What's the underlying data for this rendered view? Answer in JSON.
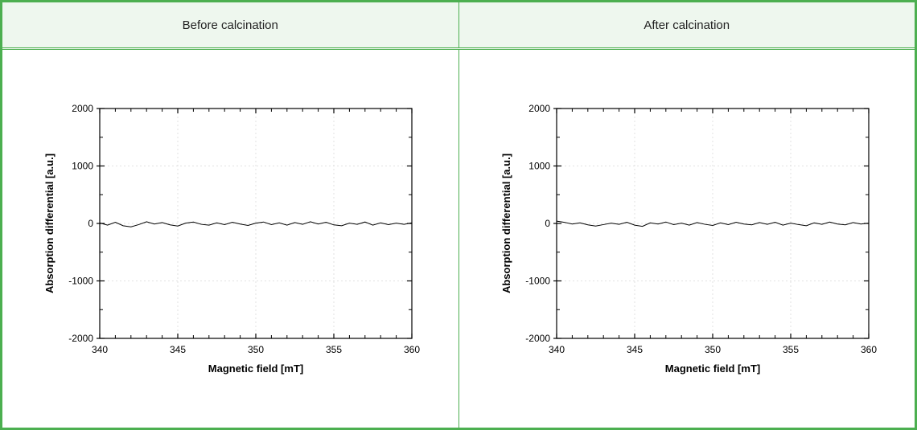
{
  "panels": [
    {
      "header": "Before  calcination",
      "chart": {
        "type": "line",
        "xlabel": "Magnetic field [mT]",
        "ylabel": "Absorption differential [a.u.]",
        "label_fontsize": 13,
        "label_fontweight": "bold",
        "tick_fontsize": 12,
        "xlim": [
          340,
          360
        ],
        "ylim": [
          -2000,
          2000
        ],
        "xticks": [
          340,
          345,
          350,
          355,
          360
        ],
        "yticks": [
          -2000,
          -1000,
          0,
          1000,
          2000
        ],
        "background_color": "#ffffff",
        "axis_color": "#000000",
        "grid_color": "#d9d9d9",
        "grid": true,
        "line_color": "#000000",
        "line_width": 1.0,
        "series_x": [
          340.0,
          340.5,
          341.0,
          341.5,
          342.0,
          342.5,
          343.0,
          343.5,
          344.0,
          344.5,
          345.0,
          345.5,
          346.0,
          346.5,
          347.0,
          347.5,
          348.0,
          348.5,
          349.0,
          349.5,
          350.0,
          350.5,
          351.0,
          351.5,
          352.0,
          352.5,
          353.0,
          353.5,
          354.0,
          354.5,
          355.0,
          355.5,
          356.0,
          356.5,
          357.0,
          357.5,
          358.0,
          358.5,
          359.0,
          359.5,
          360.0
        ],
        "series_y": [
          10,
          -30,
          20,
          -40,
          -60,
          -20,
          30,
          -10,
          15,
          -25,
          -45,
          5,
          25,
          -15,
          -30,
          10,
          -20,
          20,
          -10,
          -35,
          5,
          25,
          -20,
          10,
          -30,
          15,
          -15,
          30,
          -10,
          20,
          -25,
          -40,
          5,
          -15,
          25,
          -30,
          10,
          -20,
          5,
          -15,
          10
        ]
      }
    },
    {
      "header": "After  calcination",
      "chart": {
        "type": "line",
        "xlabel": "Magnetic field [mT]",
        "ylabel": "Absorption differential [a.u.]",
        "label_fontsize": 13,
        "label_fontweight": "bold",
        "tick_fontsize": 12,
        "xlim": [
          340,
          360
        ],
        "ylim": [
          -2000,
          2000
        ],
        "xticks": [
          340,
          345,
          350,
          355,
          360
        ],
        "yticks": [
          -2000,
          -1000,
          0,
          1000,
          2000
        ],
        "background_color": "#ffffff",
        "axis_color": "#000000",
        "grid_color": "#d9d9d9",
        "grid": true,
        "line_color": "#000000",
        "line_width": 1.0,
        "series_x": [
          340.0,
          340.5,
          341.0,
          341.5,
          342.0,
          342.5,
          343.0,
          343.5,
          344.0,
          344.5,
          345.0,
          345.5,
          346.0,
          346.5,
          347.0,
          347.5,
          348.0,
          348.5,
          349.0,
          349.5,
          350.0,
          350.5,
          351.0,
          351.5,
          352.0,
          352.5,
          353.0,
          353.5,
          354.0,
          354.5,
          355.0,
          355.5,
          356.0,
          356.5,
          357.0,
          357.5,
          358.0,
          358.5,
          359.0,
          359.5,
          360.0
        ],
        "series_y": [
          40,
          20,
          -10,
          10,
          -25,
          -45,
          -20,
          5,
          -15,
          20,
          -30,
          -50,
          10,
          -10,
          25,
          -20,
          5,
          -30,
          15,
          -15,
          -35,
          10,
          -20,
          20,
          -10,
          -25,
          15,
          -15,
          20,
          -30,
          5,
          -20,
          -40,
          10,
          -15,
          25,
          -10,
          -25,
          15,
          -10,
          5
        ]
      }
    }
  ]
}
